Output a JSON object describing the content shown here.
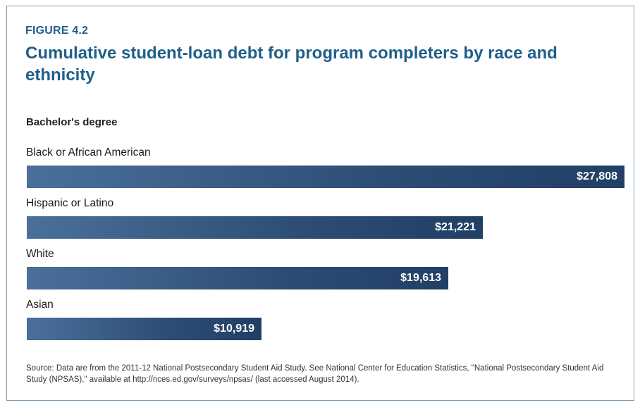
{
  "figure_label": "FIGURE 4.2",
  "title": "Cumulative student-loan debt for program completers by race and ethnicity",
  "chart_data": {
    "type": "bar",
    "orientation": "horizontal",
    "subtitle": "Bachelor's degree",
    "categories": [
      "Black or African American",
      "Hispanic or Latino",
      "White",
      "Asian"
    ],
    "values": [
      27808,
      21221,
      19613,
      10919
    ],
    "value_labels": [
      "$27,808",
      "$21,221",
      "$19,613",
      "$10,919"
    ],
    "xlim": [
      0,
      27808
    ],
    "grid": false,
    "legend": "none",
    "bar_color": "#2d4d74"
  },
  "source": "Source: Data are from the 2011-12 National Postsecondary Student Aid Study. See National Center for Education Statistics, \"National Postsecondary Student Aid Study (NPSAS),\" available at http://nces.ed.gov/surveys/npsas/ (last accessed August 2014)."
}
